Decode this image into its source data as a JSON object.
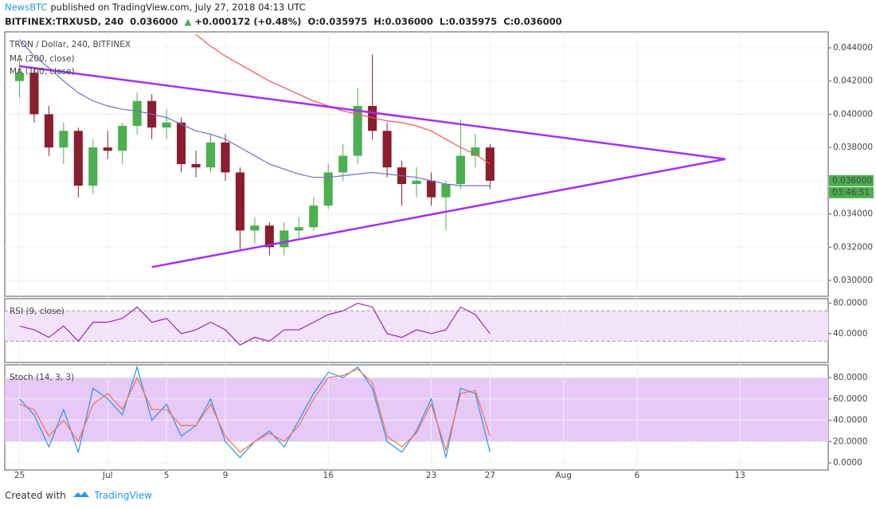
{
  "header": {
    "author": "NewsBTC",
    "published": "published on TradingView.com, July 27, 2018 04:13 UTC",
    "symbol": "BITFINEX:TRXUSD, 240",
    "last": "0.036000",
    "arrow": "▲",
    "change": "+0.000172 (+0.48%)",
    "open": "O:0.035975",
    "high": "H:0.036000",
    "low": "L:0.035975",
    "close": "C:0.036000"
  },
  "footer": {
    "created": "Created with",
    "brand": "TradingView"
  },
  "chart_data": [
    {
      "type": "candlestick",
      "title": "TRON / Dollar, 240, BITFINEX",
      "x": [
        "2018-06-25",
        "2018-06-26",
        "2018-06-27",
        "2018-06-28",
        "2018-06-29",
        "2018-06-30",
        "2018-07-01",
        "2018-07-02",
        "2018-07-03",
        "2018-07-04",
        "2018-07-05",
        "2018-07-06",
        "2018-07-07",
        "2018-07-08",
        "2018-07-09",
        "2018-07-10",
        "2018-07-11",
        "2018-07-12",
        "2018-07-13",
        "2018-07-14",
        "2018-07-15",
        "2018-07-16",
        "2018-07-17",
        "2018-07-18",
        "2018-07-19",
        "2018-07-20",
        "2018-07-21",
        "2018-07-22",
        "2018-07-23",
        "2018-07-24",
        "2018-07-25",
        "2018-07-26",
        "2018-07-27"
      ],
      "open": [
        0.042,
        0.0425,
        0.04,
        0.038,
        0.039,
        0.0357,
        0.038,
        0.0378,
        0.0393,
        0.0408,
        0.0392,
        0.0395,
        0.037,
        0.0368,
        0.0383,
        0.0365,
        0.033,
        0.0333,
        0.032,
        0.033,
        0.0332,
        0.0345,
        0.0365,
        0.0375,
        0.0405,
        0.039,
        0.0368,
        0.0358,
        0.036,
        0.035,
        0.0358,
        0.0375,
        0.038
      ],
      "high": [
        0.0433,
        0.0428,
        0.0405,
        0.0395,
        0.0392,
        0.0385,
        0.039,
        0.0395,
        0.0413,
        0.0412,
        0.0403,
        0.0398,
        0.0378,
        0.0388,
        0.0388,
        0.0368,
        0.0338,
        0.0335,
        0.0335,
        0.0338,
        0.035,
        0.037,
        0.0382,
        0.0416,
        0.0436,
        0.0395,
        0.0372,
        0.0368,
        0.0365,
        0.036,
        0.0397,
        0.0388,
        0.0382
      ],
      "low": [
        0.041,
        0.0395,
        0.0375,
        0.037,
        0.035,
        0.0352,
        0.0373,
        0.037,
        0.0388,
        0.0385,
        0.0385,
        0.0365,
        0.0362,
        0.0365,
        0.036,
        0.0318,
        0.0322,
        0.0315,
        0.0315,
        0.0325,
        0.033,
        0.0343,
        0.036,
        0.037,
        0.0385,
        0.0362,
        0.0345,
        0.035,
        0.0345,
        0.033,
        0.0355,
        0.0368,
        0.0355
      ],
      "close": [
        0.0425,
        0.04,
        0.038,
        0.039,
        0.0357,
        0.038,
        0.0378,
        0.0393,
        0.0408,
        0.0392,
        0.0395,
        0.037,
        0.0368,
        0.0383,
        0.0365,
        0.033,
        0.0333,
        0.032,
        0.033,
        0.0332,
        0.0345,
        0.0365,
        0.0375,
        0.0405,
        0.039,
        0.0368,
        0.0358,
        0.036,
        0.035,
        0.0358,
        0.0375,
        0.038,
        0.036
      ],
      "up_color": "#4caf50",
      "down_color": "#8b1e2e",
      "series": [
        {
          "name": "MA (200, close)",
          "color": "#ef5350",
          "values": [
            null,
            null,
            null,
            null,
            null,
            null,
            null,
            null,
            null,
            null,
            null,
            null,
            0.0448,
            0.0441,
            0.0435,
            0.043,
            0.0425,
            0.042,
            0.0416,
            0.0412,
            0.0408,
            0.0405,
            0.0402,
            0.04,
            0.0398,
            0.0396,
            0.0395,
            0.0393,
            0.039,
            0.0385,
            0.038,
            0.0376,
            0.037
          ]
        },
        {
          "name": "MA (100, close)",
          "color": "#6f6fc7",
          "values": [
            0.0445,
            0.0435,
            0.0428,
            0.042,
            0.0413,
            0.0408,
            0.0405,
            0.0403,
            0.0402,
            0.04,
            0.0398,
            0.0394,
            0.039,
            0.0388,
            0.0385,
            0.038,
            0.0375,
            0.037,
            0.0367,
            0.0364,
            0.0362,
            0.0362,
            0.0363,
            0.0364,
            0.0365,
            0.0364,
            0.0363,
            0.0362,
            0.036,
            0.0358,
            0.0357,
            0.0357,
            0.0357
          ]
        }
      ],
      "trendlines": [
        {
          "color": "#a72ef0",
          "x": [
            "2018-06-25",
            "2018-08-12"
          ],
          "values": [
            0.0429,
            0.0373
          ]
        },
        {
          "color": "#a72ef0",
          "x": [
            "2018-07-04",
            "2018-08-12"
          ],
          "values": [
            0.0308,
            0.0373
          ]
        }
      ],
      "last_price": {
        "value": 0.036,
        "label": "0.036000",
        "color": "#4caf50"
      },
      "countdown": "03:46:51",
      "xlim": [
        "2018-06-24",
        "2018-08-19"
      ],
      "xticks": [
        {
          "value": "2018-06-25",
          "label": "25"
        },
        {
          "value": "2018-07-01",
          "label": "Jul"
        },
        {
          "value": "2018-07-05",
          "label": "5"
        },
        {
          "value": "2018-07-09",
          "label": "9"
        },
        {
          "value": "2018-07-16",
          "label": "16"
        },
        {
          "value": "2018-07-23",
          "label": "23"
        },
        {
          "value": "2018-07-27",
          "label": "27"
        },
        {
          "value": "2018-08-01",
          "label": "Aug"
        },
        {
          "value": "2018-08-06",
          "label": "6"
        },
        {
          "value": "2018-08-13",
          "label": "13"
        }
      ],
      "ylim": [
        0.02904,
        0.04496
      ],
      "yticks": [
        {
          "value": 0.03,
          "label": "0.030000"
        },
        {
          "value": 0.032,
          "label": "0.032000"
        },
        {
          "value": 0.034,
          "label": "0.034000"
        },
        {
          "value": 0.036,
          "label": "0.036000"
        },
        {
          "value": 0.038,
          "label": "0.038000"
        },
        {
          "value": 0.04,
          "label": "0.040000"
        },
        {
          "value": 0.042,
          "label": "0.042000"
        },
        {
          "value": 0.044,
          "label": "0.044000"
        }
      ],
      "grid": true
    },
    {
      "type": "line",
      "title": "RSI (9, close)",
      "x": [
        "2018-06-25",
        "2018-06-26",
        "2018-06-27",
        "2018-06-28",
        "2018-06-29",
        "2018-06-30",
        "2018-07-01",
        "2018-07-02",
        "2018-07-03",
        "2018-07-04",
        "2018-07-05",
        "2018-07-06",
        "2018-07-07",
        "2018-07-08",
        "2018-07-09",
        "2018-07-10",
        "2018-07-11",
        "2018-07-12",
        "2018-07-13",
        "2018-07-14",
        "2018-07-15",
        "2018-07-16",
        "2018-07-17",
        "2018-07-18",
        "2018-07-19",
        "2018-07-20",
        "2018-07-21",
        "2018-07-22",
        "2018-07-23",
        "2018-07-24",
        "2018-07-25",
        "2018-07-26",
        "2018-07-27"
      ],
      "series": [
        {
          "color": "#9c27b0",
          "values": [
            50,
            45,
            35,
            50,
            30,
            55,
            55,
            60,
            75,
            55,
            60,
            40,
            45,
            55,
            45,
            25,
            35,
            30,
            45,
            45,
            55,
            65,
            70,
            80,
            75,
            40,
            35,
            45,
            40,
            45,
            75,
            65,
            40
          ]
        }
      ],
      "band": [
        30,
        70
      ],
      "band_color": "#f3e3fa",
      "ylim": [
        2,
        86
      ],
      "yticks": [
        {
          "value": 40,
          "label": "40.0000"
        },
        {
          "value": 80,
          "label": "80.0000"
        }
      ],
      "grid": true
    },
    {
      "type": "line",
      "title": "Stoch (14, 3, 3)",
      "x": [
        "2018-06-25",
        "2018-06-26",
        "2018-06-27",
        "2018-06-28",
        "2018-06-29",
        "2018-06-30",
        "2018-07-01",
        "2018-07-02",
        "2018-07-03",
        "2018-07-04",
        "2018-07-05",
        "2018-07-06",
        "2018-07-07",
        "2018-07-08",
        "2018-07-09",
        "2018-07-10",
        "2018-07-11",
        "2018-07-12",
        "2018-07-13",
        "2018-07-14",
        "2018-07-15",
        "2018-07-16",
        "2018-07-17",
        "2018-07-18",
        "2018-07-19",
        "2018-07-20",
        "2018-07-21",
        "2018-07-22",
        "2018-07-23",
        "2018-07-24",
        "2018-07-25",
        "2018-07-26",
        "2018-07-27"
      ],
      "series": [
        {
          "color": "#2196f3",
          "values": [
            60,
            45,
            15,
            50,
            10,
            70,
            60,
            45,
            90,
            40,
            55,
            25,
            35,
            60,
            20,
            5,
            20,
            30,
            15,
            40,
            65,
            85,
            80,
            90,
            70,
            20,
            10,
            30,
            60,
            5,
            70,
            65,
            10
          ]
        },
        {
          "color": "#ff7043",
          "values": [
            55,
            50,
            25,
            40,
            20,
            55,
            65,
            50,
            80,
            50,
            50,
            35,
            35,
            55,
            25,
            10,
            20,
            28,
            20,
            35,
            60,
            80,
            82,
            88,
            75,
            25,
            15,
            28,
            55,
            12,
            65,
            68,
            25
          ]
        }
      ],
      "band": [
        20,
        80
      ],
      "band_color": "#e6c9f7",
      "ylim": [
        -6.7,
        92
      ],
      "yticks": [
        {
          "value": 0,
          "label": "0.0000"
        },
        {
          "value": 20,
          "label": "20.0000"
        },
        {
          "value": 40,
          "label": "40.0000"
        },
        {
          "value": 60,
          "label": "60.0000"
        },
        {
          "value": 80,
          "label": "80.0000"
        }
      ],
      "grid": true
    }
  ]
}
